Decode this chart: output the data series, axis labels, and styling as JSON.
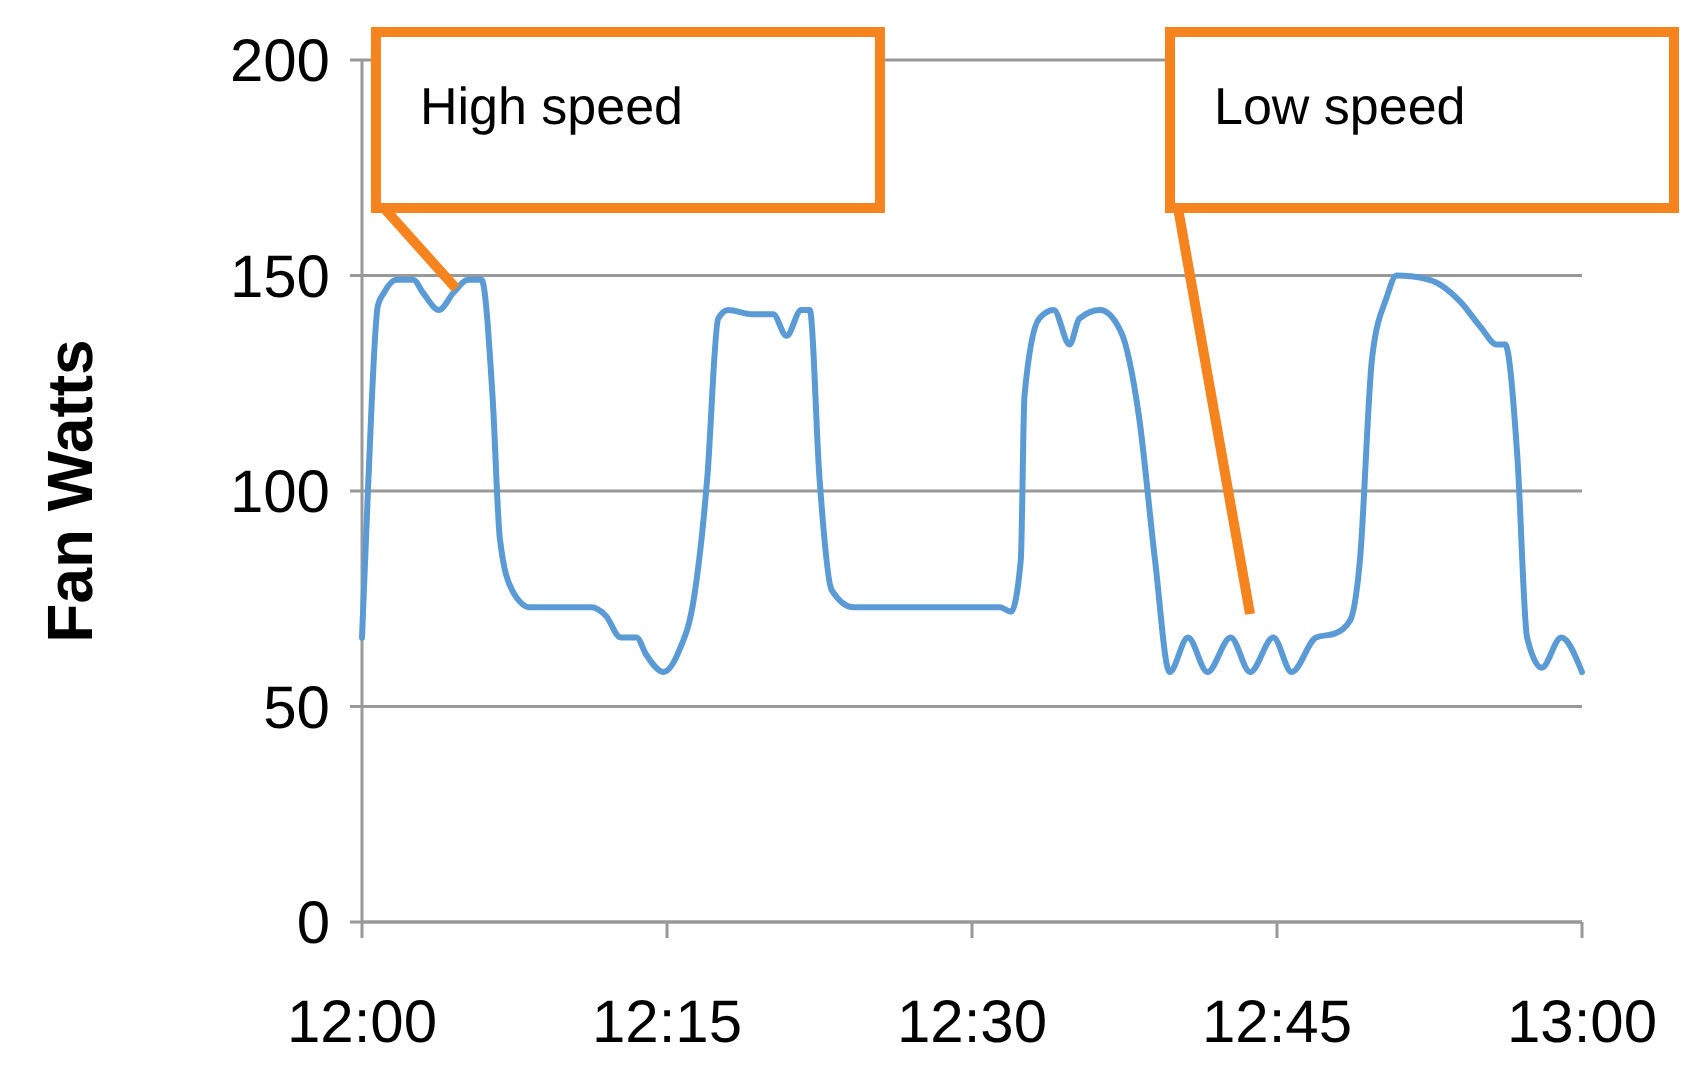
{
  "chart_data": {
    "type": "line",
    "ylabel": "Fan Watts",
    "ylim": [
      0,
      200
    ],
    "yticks": [
      0,
      50,
      100,
      150,
      200
    ],
    "xlim": [
      12,
      13
    ],
    "xticks": [
      {
        "value": 12,
        "label": "12:00"
      },
      {
        "value": 12.25,
        "label": "12:15"
      },
      {
        "value": 12.5,
        "label": "12:30"
      },
      {
        "value": 12.75,
        "label": "12:45"
      },
      {
        "value": 13,
        "label": "13:00"
      }
    ],
    "grid": "y",
    "marker": "none",
    "line_style": "solid",
    "annotations": [
      {
        "text": "High speed",
        "x": 12.077,
        "y": 147
      },
      "Low speed"
    ],
    "series": [
      {
        "color": "#5b9bd5",
        "x": [
          12.0,
          12.005,
          12.013,
          12.018,
          12.028,
          12.042,
          12.05,
          12.063,
          12.075,
          12.087,
          12.098,
          12.107,
          12.113,
          12.123,
          12.138,
          12.148,
          12.188,
          12.2,
          12.212,
          12.225,
          12.233,
          12.247,
          12.26,
          12.272,
          12.283,
          12.292,
          12.3,
          12.32,
          12.337,
          12.348,
          12.36,
          12.367,
          12.375,
          12.385,
          12.403,
          12.45,
          12.523,
          12.532,
          12.54,
          12.543,
          12.555,
          12.567,
          12.58,
          12.588,
          12.605,
          12.622,
          12.637,
          12.65,
          12.662,
          12.677,
          12.693,
          12.712,
          12.728,
          12.747,
          12.762,
          12.782,
          12.798,
          12.81,
          12.818,
          12.828,
          12.84,
          12.848,
          12.875,
          12.9,
          12.917,
          12.93,
          12.937,
          12.947,
          12.955,
          12.967,
          12.983,
          13.0
        ],
        "values": [
          66,
          101,
          143,
          146,
          149,
          149,
          146,
          142,
          146,
          149,
          149,
          122,
          89,
          77,
          73,
          73,
          73,
          71,
          66,
          66,
          62,
          58,
          63,
          75,
          103,
          140,
          142,
          141,
          141,
          136,
          142,
          142,
          103,
          77,
          73,
          73,
          73,
          72,
          84,
          122,
          140,
          142,
          134,
          140,
          142,
          137,
          117,
          84,
          58,
          66,
          58,
          66,
          58,
          66,
          58,
          66,
          67,
          70,
          84,
          131,
          145,
          150,
          149,
          144,
          138,
          134,
          134,
          108,
          66,
          59,
          66,
          58
        ]
      }
    ]
  }
}
